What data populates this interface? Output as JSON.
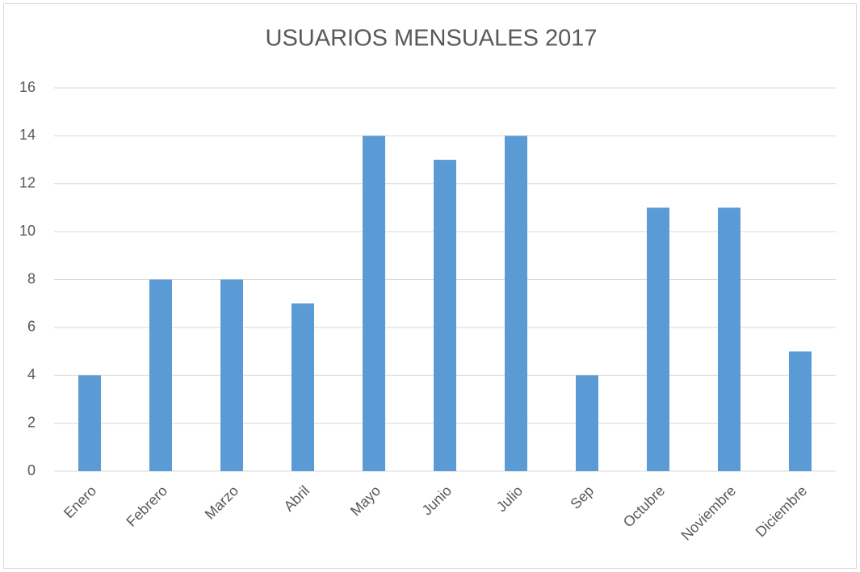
{
  "chart_data": {
    "type": "bar",
    "title": "USUARIOS MENSUALES 2017",
    "categories": [
      "Enero",
      "Febrero",
      "Marzo",
      "Abril",
      "Mayo",
      "Junio",
      "Julio",
      "Sep",
      "Octubre",
      "Noviembre",
      "Diciembre"
    ],
    "values": [
      4,
      8,
      8,
      7,
      14,
      13,
      14,
      4,
      11,
      11,
      5
    ],
    "color": "#5b9bd5",
    "ylim": [
      0,
      16
    ],
    "yticks": [
      0,
      2,
      4,
      6,
      8,
      10,
      12,
      14,
      16
    ],
    "grid": true
  }
}
